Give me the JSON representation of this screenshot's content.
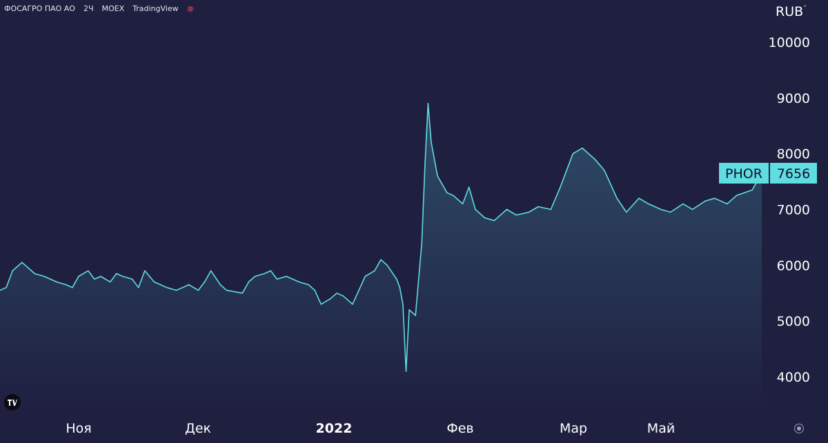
{
  "header": {
    "name": "ФОСАГРО ПАО АО",
    "interval": "2Ч",
    "exchange": "MOEX",
    "source": "TradingView"
  },
  "currency_label": "RUB",
  "last_price": {
    "ticker": "PHOR",
    "value": "7656"
  },
  "colors": {
    "background": "#1f1f40",
    "line": "#5fdde0",
    "badge_bg": "#5fdde0",
    "badge_text": "#10102a"
  },
  "chart_data": {
    "type": "area",
    "x_tick_labels": [
      "Ноя",
      "Дек",
      "2022",
      "Фев",
      "Мар",
      "Май"
    ],
    "y_ticks": [
      4000,
      5000,
      6000,
      7000,
      8000,
      9000,
      10000
    ],
    "ylim": [
      3000,
      10600
    ],
    "grid": false,
    "series": [
      {
        "x": [
          "2021-10-18",
          "2021-10-20",
          "2021-10-22",
          "2021-10-25",
          "2021-10-27",
          "2021-10-29",
          "2021-11-01",
          "2021-11-03",
          "2021-11-05",
          "2021-11-08",
          "2021-11-10",
          "2021-11-12",
          "2021-11-15",
          "2021-11-17",
          "2021-11-19",
          "2021-11-22",
          "2021-11-24",
          "2021-11-26",
          "2021-11-29",
          "2021-12-01",
          "2021-12-03",
          "2021-12-06",
          "2021-12-08",
          "2021-12-10",
          "2021-12-13",
          "2021-12-15",
          "2021-12-17",
          "2021-12-20",
          "2021-12-22",
          "2021-12-24",
          "2021-12-27",
          "2021-12-29",
          "2022-01-03",
          "2022-01-05",
          "2022-01-07",
          "2022-01-10",
          "2022-01-12",
          "2022-01-14",
          "2022-01-17",
          "2022-01-19",
          "2022-01-21",
          "2022-01-24",
          "2022-01-26",
          "2022-01-28",
          "2022-01-31",
          "2022-02-02",
          "2022-02-04",
          "2022-02-07",
          "2022-02-09",
          "2022-02-11",
          "2022-02-14",
          "2022-02-16",
          "2022-02-18",
          "2022-02-21",
          "2022-02-22",
          "2022-02-23",
          "2022-02-24",
          "2022-02-25",
          "2022-02-27",
          "2022-03-01",
          "2022-03-02",
          "2022-03-03",
          "2022-03-04",
          "2022-03-06",
          "2022-03-09",
          "2022-03-11",
          "2022-03-14",
          "2022-03-16",
          "2022-03-18",
          "2022-03-21",
          "2022-03-24",
          "2022-03-28",
          "2022-03-31",
          "2022-04-04",
          "2022-04-07",
          "2022-04-11",
          "2022-04-14",
          "2022-04-18",
          "2022-04-21",
          "2022-04-25",
          "2022-04-28",
          "2022-05-02",
          "2022-05-05",
          "2022-05-09",
          "2022-05-12",
          "2022-05-16",
          "2022-05-19",
          "2022-05-23",
          "2022-05-26",
          "2022-05-30",
          "2022-06-02",
          "2022-06-06",
          "2022-06-09",
          "2022-06-14",
          "2022-06-17"
        ],
        "values": [
          5550,
          5600,
          5900,
          6050,
          5950,
          5850,
          5800,
          5750,
          5700,
          5650,
          5600,
          5800,
          5900,
          5750,
          5800,
          5700,
          5850,
          5800,
          5750,
          5600,
          5900,
          5700,
          5650,
          5600,
          5550,
          5600,
          5650,
          5550,
          5700,
          5900,
          5650,
          5550,
          5500,
          5700,
          5800,
          5850,
          5900,
          5750,
          5800,
          5750,
          5700,
          5650,
          5550,
          5300,
          5400,
          5500,
          5450,
          5300,
          5550,
          5800,
          5900,
          6100,
          6000,
          5750,
          5600,
          5300,
          4100,
          5200,
          5100,
          6400,
          7800,
          8900,
          8200,
          7600,
          7300,
          7250,
          7100,
          7400,
          7000,
          6850,
          6800,
          7000,
          6900,
          6950,
          7050,
          7000,
          7400,
          8000,
          8100,
          7900,
          7700,
          7200,
          6950,
          7200,
          7100,
          7000,
          6950,
          7100,
          7000,
          7150,
          7200,
          7100,
          7250,
          7350,
          7656
        ]
      }
    ]
  }
}
